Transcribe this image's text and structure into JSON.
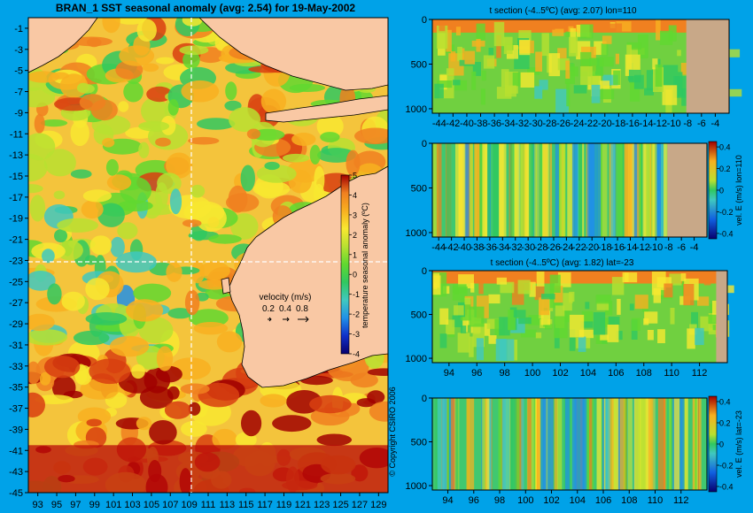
{
  "page": {
    "main_title": "BRAN_1 SST seasonal anomaly (avg: 2.54) for 19-May-2002",
    "copyright": "© Copyright CSIRO 2006"
  },
  "colors": {
    "background": "#00a2e8",
    "land": "#f9c8a4",
    "land_section": "#c8a888",
    "colormap": [
      "#08006e",
      "#1030c8",
      "#2090e8",
      "#40c8c0",
      "#30c860",
      "#60d830",
      "#b8e030",
      "#f8e830",
      "#f8b020",
      "#f08020",
      "#d84010",
      "#a00000"
    ]
  },
  "velocity_key": {
    "title": "velocity (m/s)",
    "values": [
      "0.2",
      "0.4",
      "0.8"
    ]
  },
  "chart_data": [
    {
      "type": "heatmap",
      "name": "map",
      "title": "BRAN_1 SST seasonal anomaly (avg: 2.54) for 19-May-2002",
      "x_ticks": [
        "93",
        "95",
        "97",
        "99",
        "101",
        "103",
        "105",
        "107",
        "109",
        "111",
        "113",
        "115",
        "117",
        "119",
        "121",
        "123",
        "125",
        "127",
        "129"
      ],
      "y_ticks": [
        "-1",
        "-3",
        "-5",
        "-7",
        "-9",
        "-11",
        "-13",
        "-15",
        "-17",
        "-19",
        "-21",
        "-23",
        "-25",
        "-27",
        "-29",
        "-31",
        "-33",
        "-35",
        "-37",
        "-39",
        "-41",
        "-43",
        "-45"
      ],
      "xlim": [
        92,
        130
      ],
      "ylim": [
        -45,
        0
      ],
      "section_lines": {
        "lon": 110,
        "lat": -23
      },
      "colorbar": {
        "label": "temperature seasonal anomaly (ºC)",
        "ticks": [
          "5",
          "4",
          "3",
          "2",
          "1",
          "0",
          "-1",
          "-2",
          "-3",
          "-4"
        ],
        "range": [
          -4,
          5
        ]
      }
    },
    {
      "type": "heatmap",
      "name": "t-section-lon",
      "title": "t section (-4..5ºC) (avg: 2.07) lon=110",
      "x_ticks": [
        "-44",
        "-42",
        "-40",
        "-38",
        "-36",
        "-34",
        "-32",
        "-30",
        "-28",
        "-26",
        "-24",
        "-22",
        "-20",
        "-18",
        "-16",
        "-14",
        "-12",
        "-10",
        "-8",
        "-6",
        "-4"
      ],
      "y_ticks": [
        "0",
        "500",
        "1000"
      ],
      "xlim": [
        -45,
        -2
      ],
      "ylim": [
        1050,
        0
      ]
    },
    {
      "type": "heatmap",
      "name": "vel-section-lon",
      "title": "",
      "x_ticks": [
        "-44",
        "-42",
        "-40",
        "-38",
        "-36",
        "-34",
        "-32",
        "-30",
        "-28",
        "-26",
        "-24",
        "-22",
        "-20",
        "-18",
        "-16",
        "-14",
        "-12",
        "-10",
        "-8",
        "-6",
        "-4"
      ],
      "y_ticks": [
        "0",
        "500",
        "1000"
      ],
      "xlim": [
        -45,
        -2
      ],
      "ylim": [
        1050,
        0
      ],
      "colorbar": {
        "label": "vel. E (m/s) lon=110",
        "ticks": [
          "0.4",
          "0.2",
          "0",
          "-0.2",
          "-0.4"
        ],
        "range": [
          -0.45,
          0.45
        ]
      }
    },
    {
      "type": "heatmap",
      "name": "t-section-lat",
      "title": "t section (-4..5ºC) (avg: 1.82) lat=-23",
      "x_ticks": [
        "94",
        "96",
        "98",
        "100",
        "102",
        "104",
        "106",
        "108",
        "110",
        "112"
      ],
      "y_ticks": [
        "0",
        "500",
        "1000"
      ],
      "xlim": [
        92.8,
        114
      ],
      "ylim": [
        1050,
        0
      ]
    },
    {
      "type": "heatmap",
      "name": "vel-section-lat",
      "title": "",
      "x_ticks": [
        "94",
        "96",
        "98",
        "100",
        "102",
        "104",
        "106",
        "108",
        "110",
        "112"
      ],
      "y_ticks": [
        "0",
        "500",
        "1000"
      ],
      "xlim": [
        92.8,
        114
      ],
      "ylim": [
        1050,
        0
      ],
      "colorbar": {
        "label": "vel. E (m/s) lat=-23",
        "ticks": [
          "0.4",
          "0.2",
          "0",
          "-0.2",
          "-0.4"
        ],
        "range": [
          -0.45,
          0.45
        ]
      }
    }
  ]
}
